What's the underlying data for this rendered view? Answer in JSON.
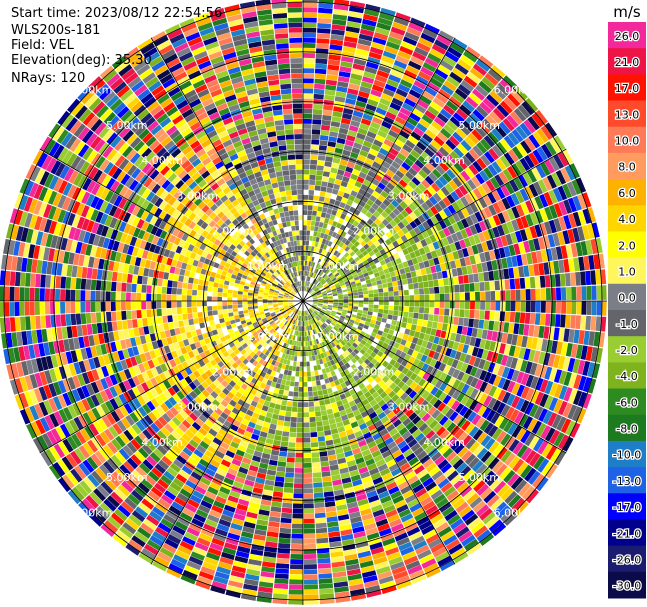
{
  "header": {
    "start_time": "Start time: 2023/08/12 22:54:56",
    "instrument": "WLS200s-181",
    "field": "Field: VEL",
    "elevation": "Elevation(deg): 35.30",
    "nrays": "NRays: 120"
  },
  "chart_data": {
    "type": "ppi",
    "field": "VEL",
    "units": "m/s",
    "colorbar": {
      "unit_label": "m/s",
      "labels": [
        "26.0",
        "21.0",
        "17.0",
        "13.0",
        "10.0",
        "8.0",
        "6.0",
        "4.0",
        "2.0",
        "1.0",
        "0.0",
        "-1.0",
        "-2.0",
        "-4.0",
        "-6.0",
        "-8.0",
        "-10.0",
        "-13.0",
        "-17.0",
        "-21.0",
        "-26.0",
        "-30.0"
      ],
      "colors": [
        "#f2289b",
        "#ee1446",
        "#ff1200",
        "#ff4a2b",
        "#ff7a57",
        "#ff9b5e",
        "#ffb100",
        "#ffd500",
        "#ffff00",
        "#fff55c",
        "#7b7e86",
        "#63656b",
        "#9acd32",
        "#7fb31d",
        "#2e8b22",
        "#1e7a1e",
        "#1e7ec8",
        "#1e62e6",
        "#0000ff",
        "#00008c",
        "#1b1b6f",
        "#0b0b4a"
      ]
    },
    "range_rings_km": [
      1,
      2,
      3,
      4,
      5,
      6
    ],
    "range_ring_labels": [
      "1.00km",
      "2.00km",
      "3.00km",
      "4.00km",
      "5.00km",
      "6.00km"
    ],
    "azimuth_lines_deg": [
      0,
      30,
      60,
      90,
      120,
      150,
      180,
      210,
      240,
      270,
      300,
      330
    ],
    "max_range_km": 6.1,
    "n_rays": 120,
    "n_gates": 60
  }
}
